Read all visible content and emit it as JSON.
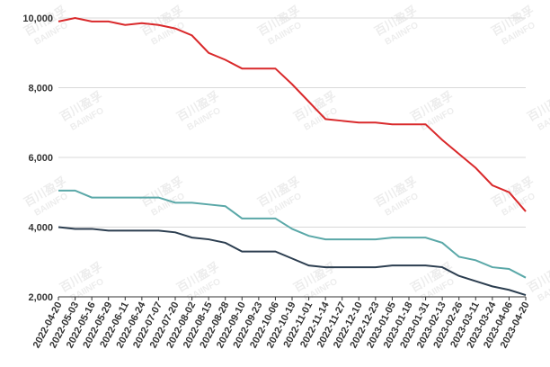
{
  "watermark": [
    "百川盈孚",
    "BAIINFO"
  ],
  "chart_data": {
    "type": "line",
    "categories": [
      "2022-04-20",
      "2022-05-03",
      "2022-05-16",
      "2022-05-29",
      "2022-06-11",
      "2022-06-24",
      "2022-07-07",
      "2022-07-20",
      "2022-08-02",
      "2022-08-15",
      "2022-08-28",
      "2022-09-10",
      "2022-09-23",
      "2022-10-06",
      "2022-10-19",
      "2022-11-01",
      "2022-11-14",
      "2022-11-27",
      "2022-12-10",
      "2022-12-23",
      "2023-01-05",
      "2023-01-18",
      "2023-01-31",
      "2023-02-13",
      "2023-02-26",
      "2023-03-11",
      "2023-03-24",
      "2023-04-06",
      "2023-04-20"
    ],
    "series": [
      {
        "color": "#d9292b",
        "values": [
          9900,
          10000,
          9900,
          9900,
          9800,
          9850,
          9800,
          9700,
          9500,
          9000,
          8800,
          8550,
          8550,
          8550,
          8100,
          7600,
          7100,
          7050,
          7000,
          7000,
          6950,
          6950,
          6950,
          6500,
          6100,
          5700,
          5200,
          5000,
          4450
        ]
      },
      {
        "color": "#5aa8a8",
        "values": [
          5050,
          5050,
          4850,
          4850,
          4850,
          4850,
          4850,
          4700,
          4700,
          4650,
          4600,
          4250,
          4250,
          4250,
          3950,
          3750,
          3650,
          3650,
          3650,
          3650,
          3700,
          3700,
          3700,
          3550,
          3150,
          3050,
          2850,
          2800,
          2550
        ]
      },
      {
        "color": "#2c3e50",
        "values": [
          4000,
          3950,
          3950,
          3900,
          3900,
          3900,
          3900,
          3850,
          3700,
          3650,
          3550,
          3300,
          3300,
          3300,
          3100,
          2900,
          2850,
          2850,
          2850,
          2850,
          2900,
          2900,
          2900,
          2850,
          2600,
          2450,
          2300,
          2200,
          2050
        ]
      }
    ],
    "ylim": [
      2000,
      10000
    ],
    "yticks": [
      {
        "value": 2000,
        "label": "2,000"
      },
      {
        "value": 4000,
        "label": "4,000"
      },
      {
        "value": 6000,
        "label": "6,000"
      },
      {
        "value": 8000,
        "label": "8,000"
      },
      {
        "value": 10000,
        "label": "10,000"
      }
    ],
    "grid": true
  }
}
